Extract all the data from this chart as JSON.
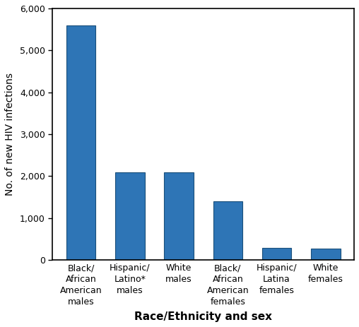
{
  "categories": [
    "Black/\nAfrican\nAmerican\nmales",
    "Hispanic/\nLatino*\nmales",
    "White\nmales",
    "Black/\nAfrican\nAmerican\nfemales",
    "Hispanic/\nLatina\nfemales",
    "White\nfemales"
  ],
  "values": [
    5600,
    2100,
    2100,
    1400,
    290,
    280
  ],
  "bar_color": "#2E75B6",
  "bar_edge_color": "#1a4f7a",
  "xlabel": "Race/Ethnicity and sex",
  "ylabel": "No. of new HIV infections",
  "ylim": [
    0,
    6000
  ],
  "yticks": [
    0,
    1000,
    2000,
    3000,
    4000,
    5000,
    6000
  ],
  "ytick_labels": [
    "0",
    "1,000",
    "2,000",
    "3,000",
    "4,000",
    "5,000",
    "6,000"
  ],
  "background_color": "#ffffff",
  "xlabel_fontsize": 11,
  "ylabel_fontsize": 10,
  "tick_fontsize": 9,
  "bar_width": 0.6
}
